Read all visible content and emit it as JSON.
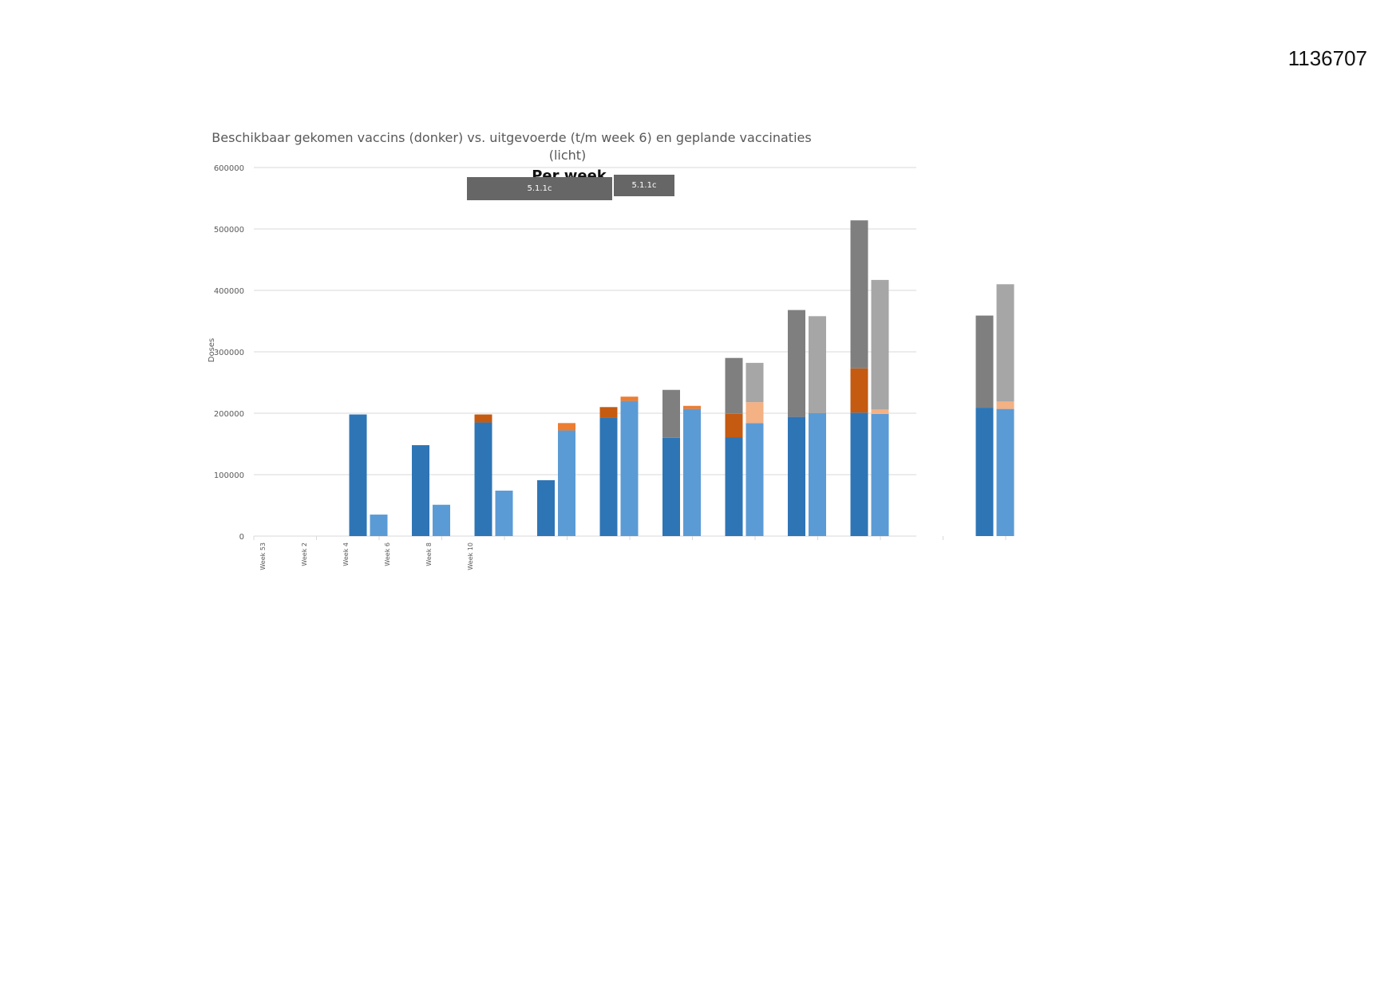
{
  "document": {
    "id": "1136707"
  },
  "chart_data": {
    "type": "bar",
    "title_lines": [
      "Beschikbaar gekomen vaccins (donker) vs. uitgevoerde (t/m week 6) en geplande vaccinaties",
      "(licht)"
    ],
    "subtitle": "Per week",
    "redactions": [
      "5.1.1c",
      "5.1.1c"
    ],
    "ylabel": "Doses",
    "ylim": [
      0,
      600000
    ],
    "yticks": [
      0,
      100000,
      200000,
      300000,
      400000,
      500000,
      600000
    ],
    "grid": true,
    "categories": [
      "Week 53",
      "Week 2",
      "Week 4",
      "Week 6",
      "Week 8",
      "Week 10",
      "",
      "",
      "",
      "",
      "",
      ""
    ],
    "groups": [
      {
        "dark": [
          0,
          0,
          0
        ],
        "light": [
          0,
          0,
          0
        ]
      },
      {
        "dark": [
          198000,
          0,
          0
        ],
        "light": [
          35000,
          0,
          0
        ]
      },
      {
        "dark": [
          148000,
          0,
          0
        ],
        "light": [
          51000,
          0,
          0
        ]
      },
      {
        "dark": [
          185000,
          13000,
          0
        ],
        "light": [
          74000,
          0,
          0
        ]
      },
      {
        "dark": [
          91000,
          0,
          0
        ],
        "light": [
          172000,
          12000,
          0
        ]
      },
      {
        "dark": [
          193000,
          17000,
          0
        ],
        "light": [
          220000,
          7000,
          0
        ]
      },
      {
        "dark": [
          160000,
          0,
          78000
        ],
        "light": [
          207000,
          5000,
          0
        ]
      },
      {
        "dark": [
          161000,
          38000,
          91000
        ],
        "light": [
          184000,
          34000,
          64000
        ]
      },
      {
        "dark": [
          194000,
          0,
          174000
        ],
        "light": [
          200000,
          0,
          158000
        ]
      },
      {
        "dark": [
          201000,
          72000,
          241000
        ],
        "light": [
          199000,
          7000,
          211000
        ]
      },
      {
        "dark": [
          0,
          0,
          0
        ],
        "light": [
          0,
          0,
          0
        ]
      },
      {
        "dark": [
          209000,
          0,
          150000
        ],
        "light": [
          207000,
          12000,
          191000
        ]
      }
    ],
    "colors": {
      "dark": [
        "#2e75b6",
        "#c55a11",
        "#7f7f7f"
      ],
      "light": [
        "#5b9bd5",
        "#f4b183",
        "#a6a6a6"
      ],
      "light_orange_early": "#ed7d31"
    }
  }
}
